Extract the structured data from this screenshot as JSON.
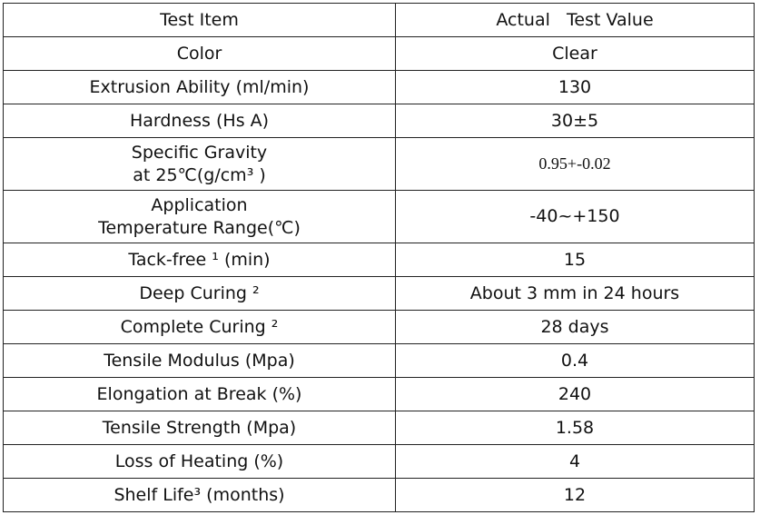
{
  "table": {
    "header": [
      "Test Item",
      "Actual   Test Value"
    ],
    "rows": [
      [
        "Color",
        "Clear"
      ],
      [
        "Extrusion Ability (ml/min)",
        "130"
      ],
      [
        "Hardness (Hs A)",
        "30±5"
      ],
      [
        [
          "Specific Gravity",
          "at 25℃(g/cm³ )"
        ],
        "0.95+-0.02"
      ],
      [
        [
          "Application",
          "Temperature Range(℃)"
        ],
        "-40~+150"
      ],
      [
        "Tack-free ¹ (min)",
        "15"
      ],
      [
        "Deep Curing ²",
        "About 3 mm in 24 hours"
      ],
      [
        "Complete Curing ²",
        "28 days"
      ],
      [
        "Tensile Modulus (Mpa)",
        "0.4"
      ],
      [
        "Elongation at Break (%)",
        "240"
      ],
      [
        "Tensile Strength (Mpa)",
        "1.58"
      ],
      [
        "Loss of Heating (%)",
        "4"
      ],
      [
        "Shelf Life³ (months)",
        "12"
      ]
    ]
  }
}
